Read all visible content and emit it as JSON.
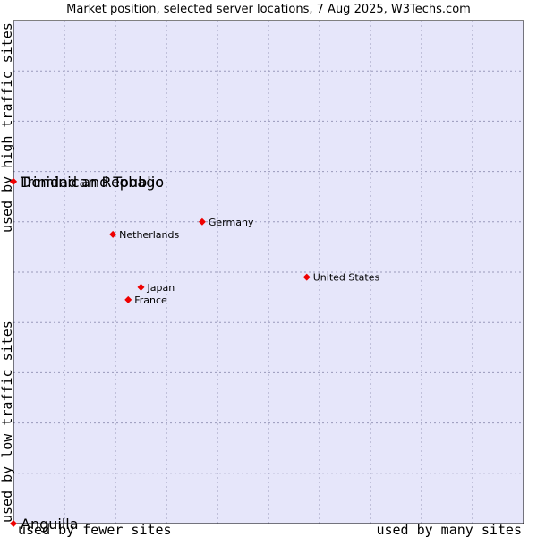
{
  "chart_data": {
    "type": "scatter",
    "title": "Market position, selected server locations, 7 Aug 2025, W3Techs.com",
    "xlabel_low": "used by fewer sites",
    "xlabel_high": "used by many sites",
    "ylabel_low": "used by low traffic sites",
    "ylabel_high": "used by high traffic sites",
    "xlim": [
      0,
      10
    ],
    "ylim": [
      0,
      10
    ],
    "grid": true,
    "colors": {
      "plot_background": "#e6e6fa",
      "grid": "#9999bb",
      "marker": "#ee0000",
      "text": "#000000"
    },
    "points": [
      {
        "name": "Trinidad and Tobago",
        "x": 0.0,
        "y": 6.8,
        "label_size": "large"
      },
      {
        "name": "Dominican Republic",
        "x": 0.0,
        "y": 6.8,
        "label_size": "large"
      },
      {
        "name": "Anguilla",
        "x": 0.0,
        "y": 0.0,
        "label_size": "large"
      },
      {
        "name": "Germany",
        "x": 3.7,
        "y": 6.0,
        "label_size": "small"
      },
      {
        "name": "Netherlands",
        "x": 1.95,
        "y": 5.75,
        "label_size": "small"
      },
      {
        "name": "United States",
        "x": 5.75,
        "y": 4.9,
        "label_size": "small"
      },
      {
        "name": "Japan",
        "x": 2.5,
        "y": 4.7,
        "label_size": "small"
      },
      {
        "name": "France",
        "x": 2.25,
        "y": 4.45,
        "label_size": "small"
      }
    ]
  }
}
